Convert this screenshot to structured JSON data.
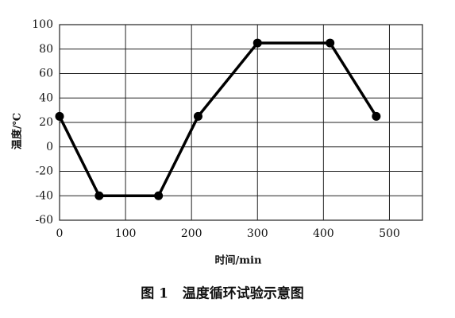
{
  "chart_data": {
    "type": "line",
    "x": [
      0,
      60,
      150,
      210,
      300,
      410,
      480
    ],
    "values": [
      25,
      -40,
      -40,
      25,
      85,
      85,
      25
    ],
    "color": "#000000",
    "xlim": [
      0,
      550
    ],
    "xticks": [
      0,
      100,
      200,
      300,
      400,
      500
    ],
    "ylim": [
      -60,
      100
    ],
    "yticks": [
      -60,
      -40,
      -20,
      0,
      20,
      40,
      60,
      80,
      100
    ],
    "grid": true,
    "xlabel": "时间/min",
    "ylabel": "温度/℃",
    "caption": "图 1   温度循环试验示意图"
  }
}
